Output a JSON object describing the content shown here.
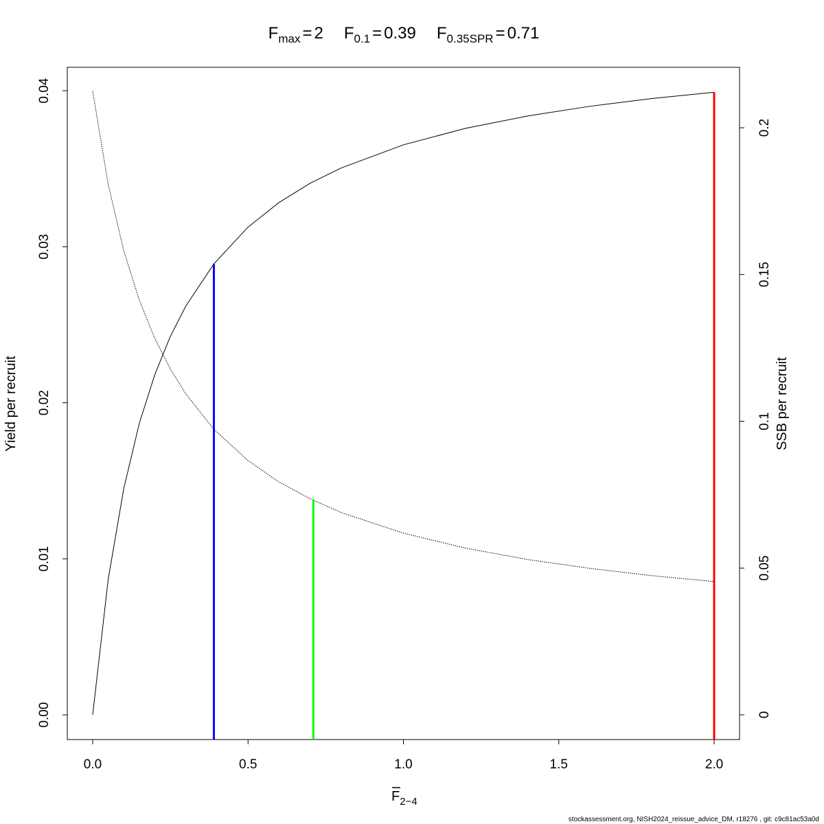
{
  "chart_data": {
    "type": "line",
    "title_parts": [
      {
        "symbol": "F",
        "subscript": "max",
        "sign": "=",
        "x": 2,
        "ymax": 0.0399,
        "axis": "y",
        "color": "#ff0000"
      },
      {
        "symbol": "F",
        "subscript": "0.1",
        "sign": "=",
        "x": 0.39,
        "ymax": 0.0289,
        "axis": "y",
        "color": "#0000ff"
      },
      {
        "symbol": "F",
        "subscript": "0.35SPR",
        "sign": "=",
        "x": 0.71,
        "ymax": 0.0734,
        "axis": "y2",
        "color": "#00ff00"
      }
    ],
    "xlabel": "F",
    "xlabel_subscript": "2−4",
    "ylabel": "Yield per recruit",
    "y2label": "SSB per recruit",
    "footer": "stockassessment.org, NISH2024_reissue_advice_DM, r18276 , git: c9c81ac53a0d",
    "x": [
      0,
      0.05,
      0.1,
      0.15,
      0.2,
      0.25,
      0.3,
      0.39,
      0.5,
      0.6,
      0.7,
      0.8,
      1.0,
      1.2,
      1.4,
      1.6,
      1.8,
      2.0
    ],
    "series": [
      {
        "color": "#000000",
        "style": "solid",
        "values": [
          0,
          0.00869,
          0.0145,
          0.01868,
          0.02181,
          0.02426,
          0.02621,
          0.0289,
          0.03126,
          0.03284,
          0.03407,
          0.03505,
          0.03653,
          0.03759,
          0.03838,
          0.039,
          0.0395,
          0.0399
        ]
      },
      {
        "color": "#000000",
        "style": "dotted",
        "axis": "y2",
        "values": [
          0.2125,
          0.1807,
          0.1581,
          0.1413,
          0.1282,
          0.1178,
          0.1093,
          0.0973,
          0.0866,
          0.0793,
          0.0736,
          0.0689,
          0.0619,
          0.0568,
          0.0529,
          0.0499,
          0.0474,
          0.0454
        ]
      }
    ],
    "xlim": [
      -0.0817,
      2.0817
    ],
    "ylim": [
      -0.00158,
      0.0415
    ],
    "y2lim": [
      -0.00842,
      0.2206
    ],
    "xticks": [
      {
        "value": 0,
        "label": "0.0"
      },
      0.5,
      {
        "value": 1,
        "label": "1.0"
      },
      1.5,
      {
        "value": 2,
        "label": "2.0"
      }
    ],
    "yticks": [
      {
        "value": 0,
        "label": "0.00"
      },
      0.01,
      0.02,
      0.03,
      0.04
    ],
    "y2ticks": [
      0,
      0.05,
      0.1,
      0.15,
      0.2
    ]
  }
}
